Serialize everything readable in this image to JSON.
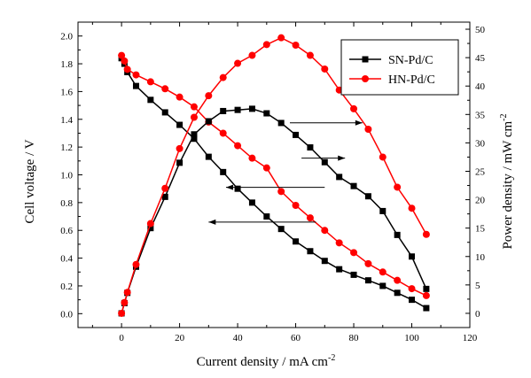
{
  "chart_data": {
    "type": "line",
    "xlabel": "Current density / mA cm",
    "xlabel_sup": "-2",
    "ylabel_left": "Cell voltage / V",
    "ylabel_right": "Power density / mW cm",
    "ylabel_right_sup": "-2",
    "xlim": [
      -15,
      120
    ],
    "ylim_left": [
      -0.1,
      2.1
    ],
    "ylim_right": [
      -2.5,
      51.25
    ],
    "x_ticks": [
      0,
      20,
      40,
      60,
      80,
      100,
      120
    ],
    "y_left_ticks": [
      0.0,
      0.2,
      0.4,
      0.6,
      0.8,
      1.0,
      1.2,
      1.4,
      1.6,
      1.8,
      2.0
    ],
    "y_left_tick_labels": [
      "0.0",
      "0.2",
      "0.4",
      "0.6",
      "0.8",
      "1.0",
      "1.2",
      "1.4",
      "1.6",
      "1.8",
      "2.0"
    ],
    "y_right_ticks": [
      0,
      5,
      10,
      15,
      20,
      25,
      30,
      35,
      40,
      45,
      50
    ],
    "legend_placement": "top-right",
    "series": [
      {
        "name": "SN-Pd/C",
        "color": "#000000",
        "marker": "square",
        "axis": "voltage",
        "x": [
          0,
          1,
          2,
          5,
          10,
          15,
          20,
          25,
          30,
          35,
          40,
          45,
          50,
          55,
          60,
          65,
          70,
          75,
          80,
          85,
          90,
          95,
          100,
          105
        ],
        "y": [
          1.84,
          1.8,
          1.74,
          1.64,
          1.54,
          1.45,
          1.36,
          1.26,
          1.13,
          1.02,
          0.9,
          0.8,
          0.7,
          0.61,
          0.52,
          0.45,
          0.38,
          0.32,
          0.28,
          0.24,
          0.2,
          0.15,
          0.1,
          0.04
        ]
      },
      {
        "name": "HN-Pd/C",
        "color": "#ff0000",
        "marker": "circle",
        "axis": "voltage",
        "x": [
          0,
          1,
          2,
          5,
          10,
          15,
          20,
          25,
          30,
          35,
          40,
          45,
          50,
          55,
          60,
          65,
          70,
          75,
          80,
          85,
          90,
          95,
          100,
          105
        ],
        "y": [
          1.86,
          1.82,
          1.76,
          1.72,
          1.67,
          1.62,
          1.56,
          1.49,
          1.38,
          1.3,
          1.21,
          1.12,
          1.05,
          0.88,
          0.78,
          0.69,
          0.6,
          0.51,
          0.44,
          0.36,
          0.3,
          0.24,
          0.18,
          0.13
        ]
      },
      {
        "name": "SN-Pd/C",
        "color": "#000000",
        "marker": "square",
        "axis": "power",
        "x": [
          0,
          1,
          2,
          5,
          10,
          15,
          20,
          25,
          30,
          35,
          40,
          45,
          50,
          55,
          60,
          65,
          70,
          75,
          80,
          85,
          90,
          95,
          100,
          105
        ],
        "y": [
          0,
          1.8,
          3.6,
          8.2,
          15.0,
          20.5,
          26.5,
          31.5,
          33.8,
          35.6,
          35.8,
          36.0,
          35.2,
          33.5,
          31.4,
          29.2,
          26.6,
          24.0,
          22.4,
          20.6,
          18.0,
          13.8,
          10.0,
          4.3
        ]
      },
      {
        "name": "HN-Pd/C",
        "color": "#ff0000",
        "marker": "circle",
        "axis": "power",
        "x": [
          0,
          1,
          2,
          5,
          10,
          15,
          20,
          25,
          30,
          35,
          40,
          45,
          50,
          55,
          60,
          65,
          70,
          75,
          80,
          85,
          90,
          95,
          100,
          105
        ],
        "y": [
          0,
          1.9,
          3.7,
          8.6,
          15.8,
          22.0,
          29.0,
          34.5,
          38.3,
          41.5,
          44.0,
          45.4,
          47.3,
          48.5,
          47.2,
          45.4,
          43.0,
          39.3,
          36.0,
          32.4,
          27.5,
          22.2,
          18.5,
          13.9
        ]
      }
    ],
    "annotations": [
      {
        "kind": "arrow",
        "direction": "right",
        "x_from": 58,
        "x_to": 83,
        "y_voltage": 1.375
      },
      {
        "kind": "arrow",
        "direction": "right",
        "x_from": 62,
        "x_to": 77,
        "y_voltage": 1.12
      },
      {
        "kind": "arrow",
        "direction": "left",
        "x_from": 70,
        "x_to": 36,
        "y_voltage": 0.91
      },
      {
        "kind": "arrow",
        "direction": "left",
        "x_from": 67,
        "x_to": 30,
        "y_voltage": 0.66
      }
    ]
  }
}
